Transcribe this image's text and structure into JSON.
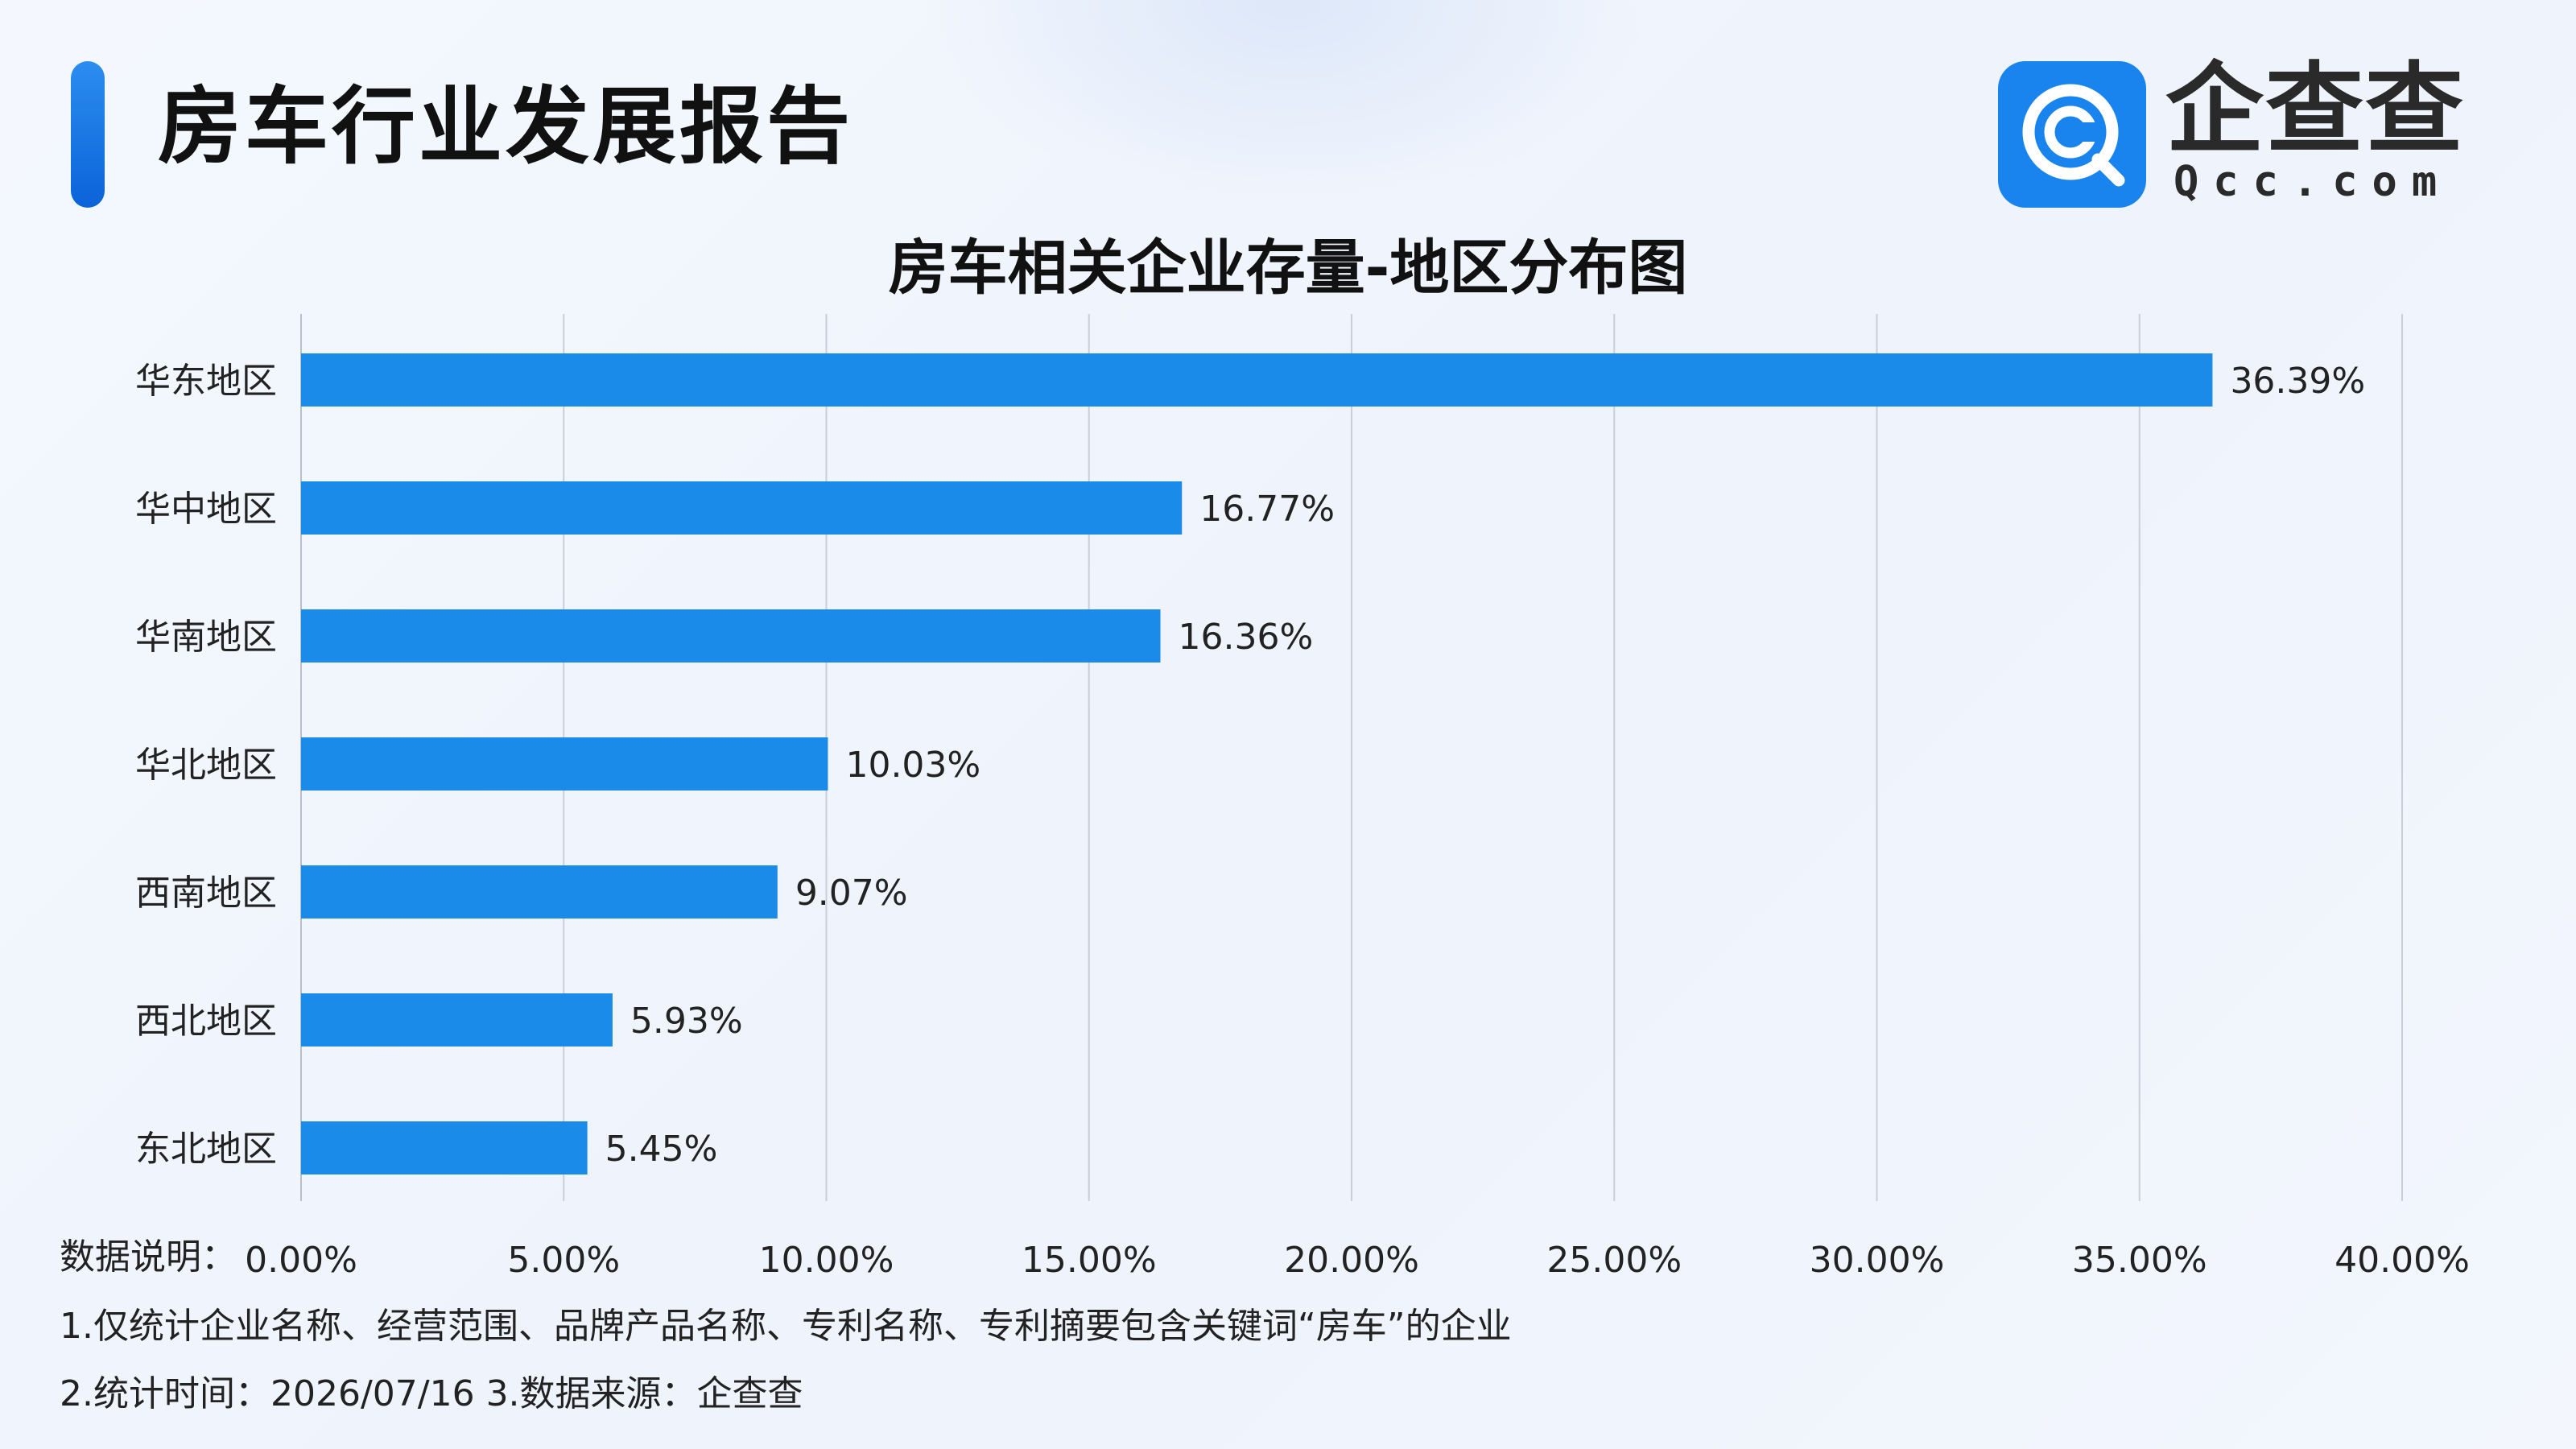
{
  "header": {
    "title": "房车行业发展报告"
  },
  "logo": {
    "name_cn": "企查查",
    "name_en": "Qcc.com",
    "icon": "qcc-logo-icon",
    "icon_color": "#1a84ee"
  },
  "chart_data": {
    "type": "bar",
    "orientation": "horizontal",
    "title": "房车相关企业存量-地区分布图",
    "categories": [
      "华东地区",
      "华中地区",
      "华南地区",
      "华北地区",
      "西南地区",
      "西北地区",
      "东北地区"
    ],
    "values": [
      36.39,
      16.77,
      16.36,
      10.03,
      9.07,
      5.93,
      5.45
    ],
    "value_labels": [
      "36.39%",
      "16.77%",
      "16.36%",
      "10.03%",
      "9.07%",
      "5.93%",
      "5.45%"
    ],
    "x_ticks": [
      "0.00%",
      "5.00%",
      "10.00%",
      "15.00%",
      "20.00%",
      "25.00%",
      "30.00%",
      "35.00%",
      "40.00%"
    ],
    "xlim": [
      0,
      40
    ],
    "grid": true,
    "legend": "none",
    "bar_color": "#1a8be8"
  },
  "notes": {
    "prefix": "数据说明：",
    "line1": "1.仅统计企业名称、经营范围、品牌产品名称、专利名称、专利摘要包含关键词“房车”的企业",
    "line2": "2.统计时间：2026/07/16    3.数据来源：企查查"
  }
}
